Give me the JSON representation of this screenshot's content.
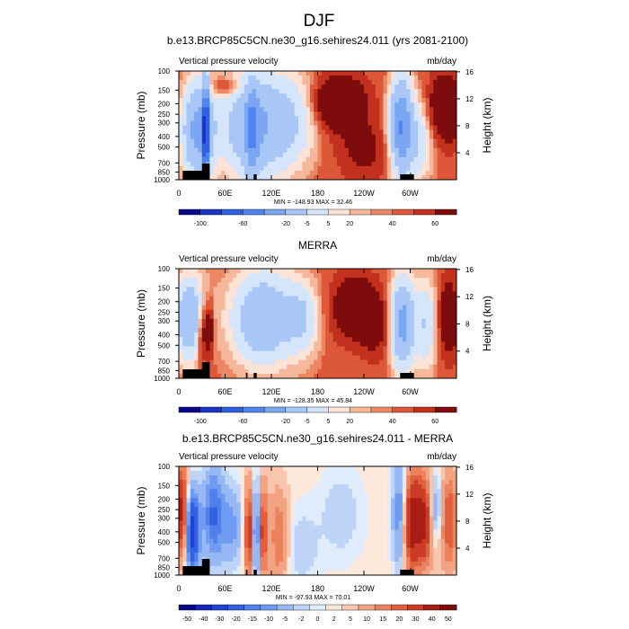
{
  "figure_title": "DJF",
  "colors": {
    "scale12": [
      "#08088a",
      "#1a35c6",
      "#2f60e0",
      "#4f84ee",
      "#7aa6f2",
      "#a9c7f6",
      "#d5e5fb",
      "#fde3d5",
      "#f6b79a",
      "#ec8763",
      "#dc5838",
      "#c2301e",
      "#7f0c0c"
    ],
    "scale16": [
      "#08088a",
      "#1525b8",
      "#1f42d3",
      "#3361e2",
      "#4f80ec",
      "#6f9cf2",
      "#96b9f5",
      "#bdd4f8",
      "#e0ecfc",
      "#fde8dc",
      "#f9c6ad",
      "#f2a482",
      "#ea825e",
      "#df5f3f",
      "#cb3b26",
      "#a81d15",
      "#7f0c0c"
    ]
  },
  "chart_data": [
    {
      "type": "heatmap",
      "title": "b.e13.BRCP85C5CN.ne30_g16.sehires24.011 (yrs 2081-2100)",
      "left_label": "Vertical pressure velocity",
      "right_label": "mb/day",
      "ylabel": "Pressure (mb)",
      "ylabel_right": "Height (km)",
      "x_ticks": [
        "0",
        "60E",
        "120E",
        "180",
        "120W",
        "60W"
      ],
      "y_ticks": [
        "100",
        "150",
        "200",
        "250",
        "300",
        "400",
        "500",
        "700",
        "850",
        "1000"
      ],
      "y2_ticks": [
        "16",
        "12",
        "8",
        "4"
      ],
      "stats": "MIN = -148.93  MAX =  32.46",
      "colorbar_labels": [
        "-100",
        "-60",
        "-20",
        "-5",
        "5",
        "20",
        "40",
        "60"
      ],
      "levels": [
        -120,
        -100,
        -80,
        -60,
        -40,
        -20,
        -10,
        -5,
        -1,
        1,
        5,
        10,
        20,
        40,
        60,
        80,
        100
      ],
      "scale": "scale12"
    },
    {
      "type": "heatmap",
      "title": "MERRA",
      "left_label": "Vertical pressure velocity",
      "right_label": "mb/day",
      "ylabel": "Pressure (mb)",
      "ylabel_right": "Height (km)",
      "x_ticks": [
        "0",
        "60E",
        "120E",
        "180",
        "120W",
        "60W"
      ],
      "y_ticks": [
        "100",
        "150",
        "200",
        "250",
        "300",
        "400",
        "500",
        "700",
        "850",
        "1000"
      ],
      "y2_ticks": [
        "16",
        "12",
        "8",
        "4"
      ],
      "stats": "MIN = -128.35  MAX =  45.84",
      "colorbar_labels": [
        "-100",
        "-60",
        "-20",
        "-5",
        "5",
        "20",
        "40",
        "60"
      ],
      "levels": [
        -120,
        -100,
        -80,
        -60,
        -40,
        -20,
        -10,
        -5,
        -1,
        1,
        5,
        10,
        20,
        40,
        60,
        80,
        100
      ],
      "scale": "scale12"
    },
    {
      "type": "heatmap",
      "title": "b.e13.BRCP85C5CN.ne30_g16.sehires24.011 - MERRA",
      "left_label": "Vertical pressure velocity",
      "right_label": "mb/day",
      "ylabel": "Pressure (mb)",
      "ylabel_right": "Height (km)",
      "x_ticks": [
        "0",
        "60E",
        "120E",
        "180",
        "120W",
        "60W"
      ],
      "y_ticks": [
        "100",
        "150",
        "200",
        "250",
        "300",
        "400",
        "500",
        "700",
        "850",
        "1000"
      ],
      "y2_ticks": [
        "16",
        "12",
        "8",
        "4"
      ],
      "stats": "MIN = -97.93  MAX =  70.01",
      "colorbar_labels": [
        "-50",
        "-40",
        "-30",
        "-20",
        "-15",
        "-10",
        "-5",
        "-2",
        "0",
        "2",
        "5",
        "10",
        "15",
        "20",
        "30",
        "40",
        "50"
      ],
      "levels": [
        -50,
        -40,
        -30,
        -20,
        -15,
        -10,
        -5,
        -2,
        0,
        2,
        5,
        10,
        15,
        20,
        30,
        40,
        50
      ],
      "scale": "scale16"
    }
  ]
}
